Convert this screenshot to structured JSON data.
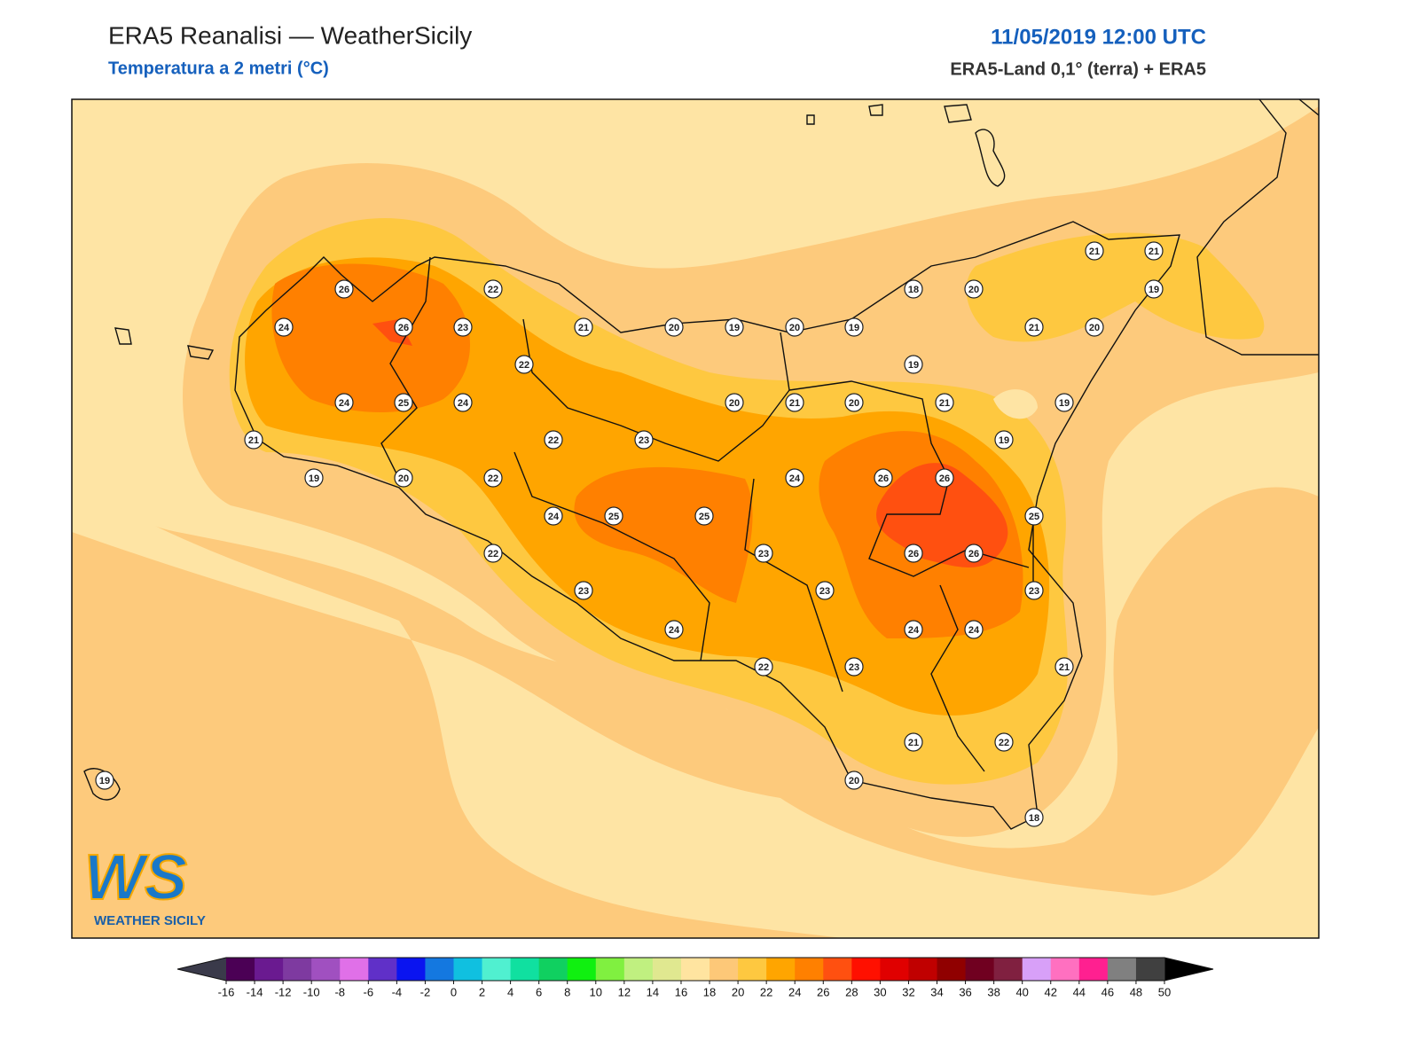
{
  "header": {
    "title": "ERA5 Reanalisi — WeatherSicily",
    "subtitle": "Temperatura a 2 metri (°C)",
    "datetime": "11/05/2019 12:00 UTC",
    "source": "ERA5-Land 0,1° (terra) + ERA5"
  },
  "stations": {
    "values": [
      26,
      22,
      24,
      26,
      23,
      21,
      20,
      19,
      20,
      19,
      18,
      20,
      21,
      21,
      19,
      21,
      20,
      22,
      19,
      24,
      25,
      24,
      20,
      21,
      20,
      21,
      19,
      21,
      22,
      23,
      19,
      19,
      20,
      22,
      24,
      26,
      26,
      24,
      25,
      25,
      25,
      22,
      23,
      26,
      26,
      23,
      23,
      23,
      24,
      24,
      24,
      22,
      23,
      21,
      21,
      22,
      20,
      18,
      19
    ]
  },
  "logo": {
    "mark": "WS",
    "name": "WEATHER SICILY"
  },
  "colorbar": {
    "ticks": [
      -16,
      -14,
      -12,
      -10,
      -8,
      -6,
      -4,
      -2,
      0,
      2,
      4,
      6,
      8,
      10,
      12,
      14,
      16,
      18,
      20,
      22,
      24,
      26,
      28,
      30,
      32,
      34,
      36,
      38,
      40,
      42,
      44,
      46,
      48,
      50
    ],
    "under_color": "#3a3a4a",
    "over_color": "#000000",
    "colors": [
      "#4b0055",
      "#6a1a90",
      "#7e3aa0",
      "#a050c0",
      "#e070e8",
      "#6030c8",
      "#0a14f0",
      "#1478e0",
      "#10c0e0",
      "#50f0d0",
      "#10e0a0",
      "#10d060",
      "#10f010",
      "#80f040",
      "#c0f080",
      "#e0e890",
      "#ffe4a0",
      "#fdc878",
      "#fec840",
      "#ffa500",
      "#ff8000",
      "#ff5010",
      "#ff1000",
      "#e00000",
      "#c00000",
      "#900000",
      "#700020",
      "#802040",
      "#d8a0f8",
      "#ff70c0",
      "#ff2090",
      "#808080",
      "#404040"
    ]
  }
}
